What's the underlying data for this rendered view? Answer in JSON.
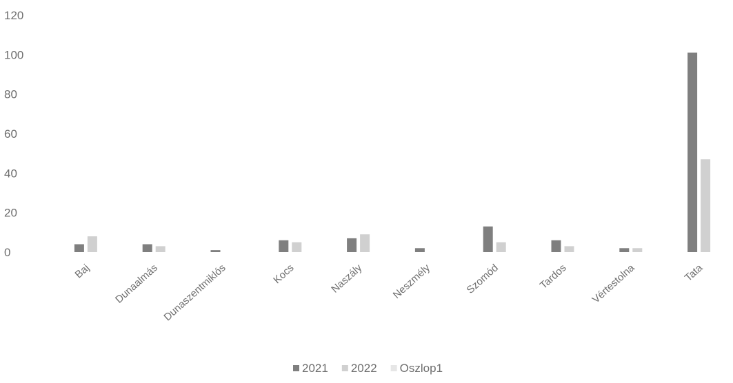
{
  "chart_data": {
    "type": "bar",
    "categories": [
      "Baj",
      "Dunaalmás",
      "Dunaszentmiklós",
      "Kocs",
      "Naszály",
      "Neszmély",
      "Szomód",
      "Tardos",
      "Vértestolna",
      "Tata"
    ],
    "series": [
      {
        "name": "2021",
        "values": [
          4,
          4,
          1,
          6,
          7,
          2,
          13,
          6,
          2,
          101
        ],
        "color": "#7f7f7f"
      },
      {
        "name": "2022",
        "values": [
          8,
          3,
          0,
          5,
          9,
          0,
          5,
          3,
          2,
          47
        ],
        "color": "#d0d0d0"
      },
      {
        "name": "Oszlop1",
        "values": [
          0,
          0,
          0,
          0,
          0,
          0,
          0,
          0,
          0,
          0
        ],
        "color": "#e6e6e6"
      }
    ],
    "y_ticks": [
      "0",
      "20",
      "40",
      "60",
      "80",
      "100",
      "120"
    ],
    "ylim": [
      0,
      120
    ],
    "grid": false,
    "legend_position": "bottom"
  }
}
